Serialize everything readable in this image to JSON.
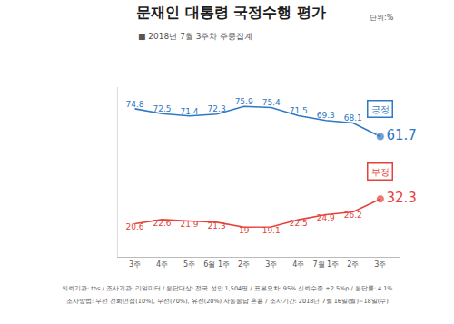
{
  "chart_data": {
    "type": "line",
    "title": "문재인 대통령 국정수행 평가",
    "unit": "단위:%",
    "subtitle": "■ 2018년 7월 3주차 주중집계",
    "categories": [
      "3주",
      "4주",
      "5주",
      "6월 1주",
      "2주",
      "3주",
      "4주",
      "7월 1주",
      "2주",
      "3주"
    ],
    "series": [
      {
        "name": "긍정",
        "color": "#2f78c4",
        "values": [
          74.8,
          72.5,
          71.4,
          72.3,
          75.9,
          75.4,
          71.5,
          69.3,
          68.1,
          61.7
        ]
      },
      {
        "name": "부정",
        "color": "#e5423c",
        "values": [
          20.6,
          22.6,
          21.9,
          21.3,
          19.0,
          19.1,
          22.5,
          24.9,
          26.2,
          32.3
        ]
      }
    ],
    "ylim": [
      5,
      85
    ],
    "grid": false,
    "data_labels": true,
    "tick_labels": "x",
    "annotations": [
      "의뢰기관: tbs / 조사기관: 리얼미터 / 응답대상: 전국 성인 1,504명 / 표본오차: 95% 신뢰수준 ±2.5%p / 응답률: 4.1%",
      "조사방법: 무선 전화면접(10%), 무선(70%), 유선(20%) 자동응답 혼용 / 조사기간: 2018년 7월 16일(월)~18일(수)"
    ]
  }
}
